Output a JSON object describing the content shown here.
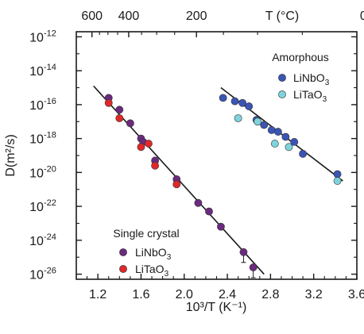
{
  "chart_data": {
    "type": "scatter",
    "y_scale": "log",
    "xlim": [
      1.0,
      3.6
    ],
    "ylim": [
      -26.3,
      -11.7
    ],
    "xlabel": "10³/T (K⁻¹)",
    "ylabel": "D(m²/s)",
    "top_axis_label": "T (°C)",
    "x_ticks": [
      1.2,
      1.6,
      2.0,
      2.4,
      2.8,
      3.2,
      3.6
    ],
    "x_tick_labels": [
      "1.2",
      "1.6",
      "2.0",
      "2.4",
      "2.8",
      "3.2",
      "3.6"
    ],
    "y_ticks": [
      -26,
      -24,
      -22,
      -20,
      -18,
      -16,
      -14,
      -12
    ],
    "y_tick_bases": [
      "10",
      "10",
      "10",
      "10",
      "10",
      "10",
      "10",
      "10"
    ],
    "y_tick_exponents": [
      "-26",
      "-24",
      "-22",
      "-20",
      "-18",
      "-16",
      "-14",
      "-12"
    ],
    "top_ticks_celsius": [
      600,
      400,
      200,
      0
    ],
    "top_tick_labels": [
      "600",
      "400",
      "200",
      "0"
    ],
    "groups": [
      {
        "label": "Amorphous"
      },
      {
        "label": "Single crystal"
      }
    ],
    "series": [
      {
        "name": "LiNbO3",
        "group": "amorphous",
        "color": "#3b55b5",
        "x": [
          2.36,
          2.47,
          2.54,
          2.6,
          2.67,
          2.74,
          2.81,
          2.87,
          2.94,
          3.02,
          3.1,
          3.42
        ],
        "log_y": [
          -15.6,
          -15.8,
          -15.9,
          -16.1,
          -16.9,
          -17.2,
          -17.5,
          -17.6,
          -17.9,
          -18.2,
          -18.9,
          -20.1
        ]
      },
      {
        "name": "LiTaO3",
        "group": "amorphous",
        "color": "#7fd3dc",
        "x": [
          2.5,
          2.68,
          2.84,
          2.97,
          3.42
        ],
        "log_y": [
          -16.8,
          -17.0,
          -18.3,
          -18.5,
          -20.5
        ]
      },
      {
        "name": "LiNbO3",
        "group": "single crystal",
        "color": "#6b2a7e",
        "x": [
          1.3,
          1.4,
          1.5,
          1.6,
          1.62,
          1.73,
          1.93,
          2.13,
          2.23,
          2.34,
          2.55,
          2.64
        ],
        "log_y": [
          -15.6,
          -16.3,
          -17.1,
          -18.0,
          -18.2,
          -19.3,
          -20.4,
          -21.8,
          -22.3,
          -23.2,
          -24.7,
          -25.6
        ]
      },
      {
        "name": "LiTaO3",
        "group": "single crystal",
        "color": "#e0282a",
        "x": [
          1.3,
          1.4,
          1.6,
          1.67,
          1.73,
          1.93
        ],
        "log_y": [
          -15.9,
          -16.8,
          -18.5,
          -18.3,
          -19.6,
          -20.7
        ]
      }
    ],
    "fit_lines": [
      {
        "group": "single crystal",
        "x": [
          1.16,
          2.74
        ],
        "log_y": [
          -14.9,
          -26.0
        ]
      },
      {
        "group": "amorphous",
        "x": [
          2.34,
          3.47
        ],
        "log_y": [
          -15.0,
          -20.5
        ]
      }
    ]
  }
}
